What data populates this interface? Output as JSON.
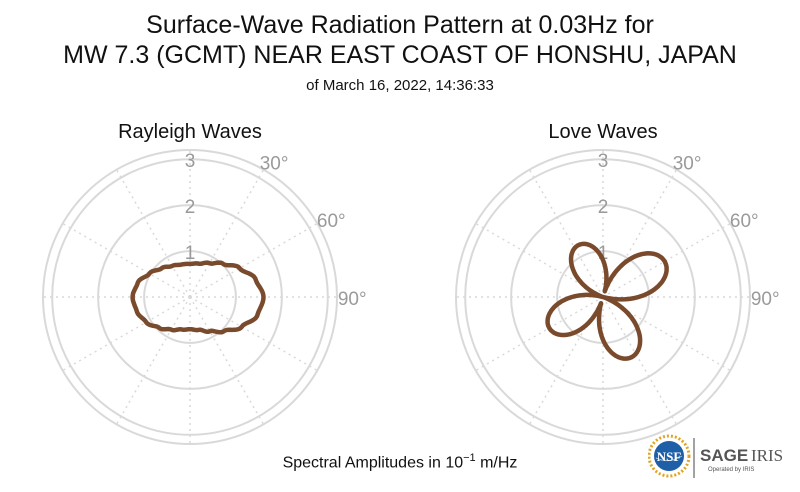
{
  "header": {
    "title_line1": "Surface-Wave Radiation Pattern at 0.03Hz for",
    "title_line2": "MW 7.3 (GCMT) NEAR EAST COAST OF HONSHU, JAPAN",
    "subtitle": "of March 16, 2022, 14:36:33"
  },
  "caption": {
    "prefix": "Spectral Amplitudes in ",
    "base": "10",
    "exponent": "−1",
    "unit": " m/Hz"
  },
  "logos": {
    "nsf_text": "NSF",
    "sage_text": "SAGE",
    "iris_text": "IRIS",
    "operated_by": "Operated by IRIS"
  },
  "colors": {
    "pattern": "#7a4a2c",
    "grid": "#d9d9d9",
    "label": "#9a9a9a",
    "nsf_blue": "#1f5fa8",
    "nsf_gold": "#e0a526",
    "sage_gray": "#555555"
  },
  "chart_data": [
    {
      "type": "polar",
      "title": "Rayleigh Waves",
      "r_ticks": [
        1,
        2,
        3
      ],
      "r_max": 3.2,
      "theta_labels": [
        "30°",
        "60°",
        "90°"
      ],
      "theta": [
        0,
        15,
        30,
        45,
        60,
        75,
        90,
        105,
        120,
        135,
        150,
        165,
        180,
        195,
        210,
        225,
        240,
        255,
        270,
        285,
        300,
        315,
        330,
        345
      ],
      "r": [
        0.72,
        0.75,
        0.85,
        1.02,
        1.25,
        1.48,
        1.6,
        1.52,
        1.3,
        1.05,
        0.86,
        0.74,
        0.7,
        0.73,
        0.82,
        0.95,
        1.1,
        1.2,
        1.25,
        1.18,
        1.02,
        0.88,
        0.78,
        0.73
      ]
    },
    {
      "type": "polar",
      "title": "Love Waves",
      "r_ticks": [
        1,
        2,
        3
      ],
      "r_max": 3.2,
      "theta_labels": [
        "30°",
        "60°",
        "90°"
      ],
      "lobes": [
        {
          "theta": 60,
          "r": 1.55
        },
        {
          "theta": 155,
          "r": 1.45
        },
        {
          "theta": 240,
          "r": 1.35
        },
        {
          "theta": 335,
          "r": 1.25
        }
      ]
    }
  ]
}
